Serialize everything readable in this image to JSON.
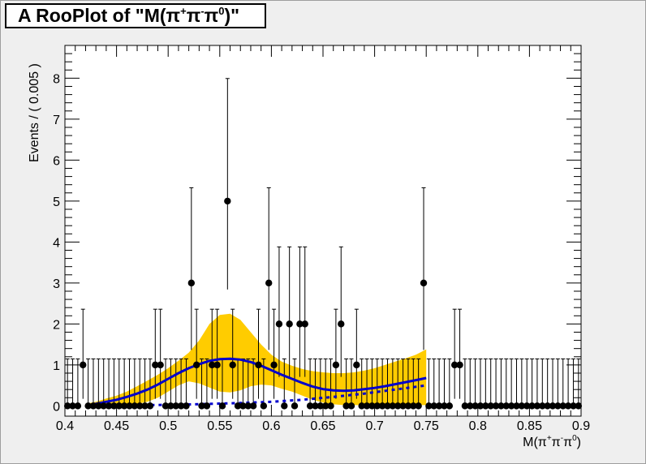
{
  "title": {
    "prefix": "A RooPlot of \"M(π",
    "sup1": "+",
    "mid1": "π",
    "sup2": "-",
    "mid2": "π",
    "sup3": "0",
    "suffix": ")\""
  },
  "axis_labels": {
    "x": {
      "base": "M(π",
      "sup1": "+",
      "mid1": "π",
      "sup2": "-",
      "mid2": "π",
      "sup3": "0",
      "suffix": ")"
    },
    "y": "Events / ( 0.005 )"
  },
  "colors": {
    "data": "#000000",
    "fit_band": "#ffcc00",
    "fit_line": "#0000cc",
    "background_line": "#0000cc",
    "frame": "#efefef"
  },
  "chart_data": {
    "type": "scatter",
    "xlim": [
      0.4,
      0.9
    ],
    "ylim": [
      -0.25,
      8.8
    ],
    "x_ticks": [
      0.4,
      0.45,
      0.5,
      0.55,
      0.6,
      0.65,
      0.7,
      0.75,
      0.8,
      0.85,
      0.9
    ],
    "x_tick_labels": [
      "0.4",
      "0.45",
      "0.5",
      "0.55",
      "0.6",
      "0.65",
      "0.7",
      "0.75",
      "0.8",
      "0.85",
      "0.9"
    ],
    "y_ticks": [
      0,
      1,
      2,
      3,
      4,
      5,
      6,
      7,
      8
    ],
    "y_tick_labels": [
      "0",
      "1",
      "2",
      "3",
      "4",
      "5",
      "6",
      "7",
      "8"
    ],
    "bin_width": 0.005,
    "data_x_start": 0.4025,
    "data_counts": [
      0,
      0,
      0,
      1,
      0,
      0,
      0,
      0,
      0,
      0,
      0,
      0,
      0,
      0,
      0,
      0,
      0,
      1,
      1,
      0,
      0,
      0,
      0,
      0,
      3,
      1,
      0,
      0,
      1,
      1,
      0,
      5,
      1,
      0,
      0,
      0,
      0,
      1,
      0,
      3,
      1,
      2,
      0,
      2,
      0,
      2,
      2,
      0,
      0,
      0,
      0,
      0,
      1,
      2,
      0,
      0,
      1,
      0,
      0,
      0,
      0,
      0,
      0,
      0,
      0,
      0,
      0,
      0,
      0,
      3,
      0,
      0,
      0,
      0,
      0,
      1,
      1,
      0,
      0,
      0,
      0,
      0,
      0,
      0,
      0,
      0,
      0,
      0,
      0,
      0,
      0,
      0,
      0,
      0,
      0,
      0,
      0,
      0,
      0,
      0
    ],
    "series": [
      {
        "name": "",
        "kind": "data",
        "values_note": ""
      },
      {
        "name": "",
        "kind": "fit",
        "x": [
          0.42,
          0.43,
          0.44,
          0.45,
          0.46,
          0.47,
          0.48,
          0.49,
          0.5,
          0.51,
          0.52,
          0.53,
          0.54,
          0.55,
          0.56,
          0.57,
          0.58,
          0.59,
          0.6,
          0.61,
          0.62,
          0.63,
          0.64,
          0.65,
          0.66,
          0.67,
          0.68,
          0.69,
          0.7,
          0.71,
          0.72,
          0.73,
          0.74,
          0.75
        ],
        "y": [
          0,
          0.05,
          0.1,
          0.15,
          0.22,
          0.3,
          0.4,
          0.52,
          0.66,
          0.8,
          0.92,
          1.02,
          1.1,
          1.14,
          1.15,
          1.13,
          1.07,
          0.98,
          0.87,
          0.76,
          0.66,
          0.56,
          0.47,
          0.41,
          0.38,
          0.37,
          0.38,
          0.41,
          0.44,
          0.48,
          0.53,
          0.58,
          0.63,
          0.68
        ],
        "band_lo": [
          0,
          0,
          0,
          0,
          0.02,
          0.05,
          0.1,
          0.2,
          0.35,
          0.5,
          0.6,
          0.55,
          0.45,
          0.35,
          0.33,
          0.38,
          0.48,
          0.52,
          0.5,
          0.42,
          0.35,
          0.25,
          0.15,
          0.08,
          0.04,
          0.02,
          0.02,
          0.02,
          0.02,
          0.02,
          0.02,
          0.02,
          0.02,
          0.02
        ],
        "band_hi": [
          0.05,
          0.1,
          0.18,
          0.25,
          0.35,
          0.48,
          0.62,
          0.76,
          0.92,
          1.1,
          1.3,
          1.6,
          2.0,
          2.22,
          2.25,
          2.1,
          1.8,
          1.5,
          1.25,
          1.08,
          0.98,
          0.9,
          0.85,
          0.82,
          0.8,
          0.8,
          0.82,
          0.86,
          0.92,
          1.0,
          1.08,
          1.16,
          1.25,
          1.38
        ]
      },
      {
        "name": "",
        "kind": "background",
        "x": [
          0.42,
          0.45,
          0.48,
          0.51,
          0.54,
          0.57,
          0.6,
          0.63,
          0.66,
          0.69,
          0.72,
          0.75
        ],
        "y": [
          0,
          0.01,
          0.02,
          0.03,
          0.05,
          0.07,
          0.1,
          0.15,
          0.22,
          0.3,
          0.4,
          0.5
        ]
      }
    ]
  }
}
